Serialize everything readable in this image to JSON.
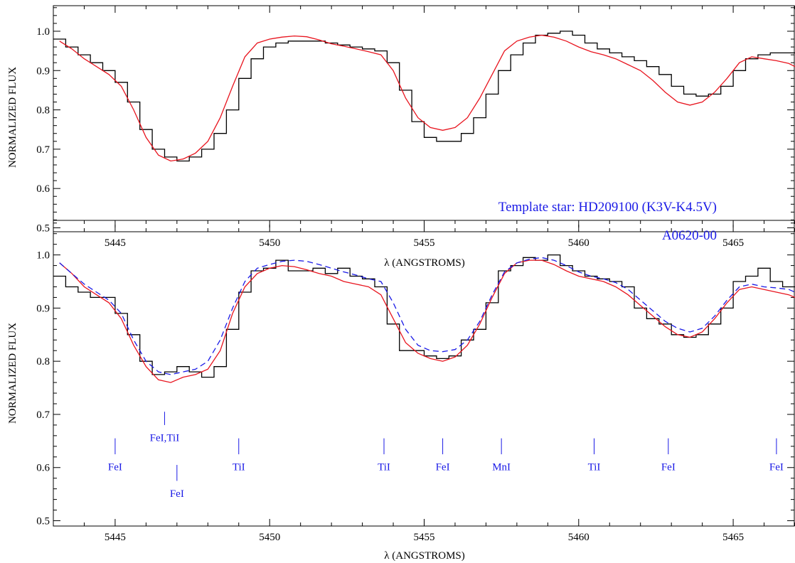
{
  "chart_data": [
    {
      "type": "line",
      "xlabel": "λ (ANGSTROMS)",
      "ylabel": "NORMALIZED FLUX",
      "xlim": [
        5443.0,
        5467.0
      ],
      "ylim": [
        0.49,
        1.065
      ],
      "x_ticks": [
        5445,
        5450,
        5455,
        5460,
        5465
      ],
      "y_ticks": [
        0.5,
        0.6,
        0.7,
        0.8,
        0.9,
        1.0
      ],
      "annotation": "Template star: HD209100 (K3V-K4.5V)",
      "colors": {
        "observed": "#000000",
        "model": "#e8141e"
      },
      "series": [
        {
          "style": "steps",
          "x": [
            5443.2,
            5443.6,
            5444.0,
            5444.4,
            5444.8,
            5445.2,
            5445.6,
            5446.0,
            5446.4,
            5446.8,
            5447.2,
            5447.6,
            5448.0,
            5448.4,
            5448.8,
            5449.2,
            5449.6,
            5450.0,
            5450.4,
            5450.8,
            5451.2,
            5451.6,
            5452.0,
            5452.4,
            5452.8,
            5453.2,
            5453.6,
            5454.0,
            5454.4,
            5454.8,
            5455.2,
            5455.6,
            5456.0,
            5456.4,
            5456.8,
            5457.2,
            5457.6,
            5458.0,
            5458.4,
            5458.8,
            5459.2,
            5459.6,
            5460.0,
            5460.4,
            5460.8,
            5461.2,
            5461.6,
            5462.0,
            5462.4,
            5462.8,
            5463.2,
            5463.6,
            5464.0,
            5464.4,
            5464.8,
            5465.2,
            5465.6,
            5466.0,
            5466.4,
            5466.8
          ],
          "y": [
            0.98,
            0.96,
            0.94,
            0.92,
            0.9,
            0.87,
            0.82,
            0.75,
            0.7,
            0.68,
            0.67,
            0.68,
            0.7,
            0.74,
            0.8,
            0.88,
            0.93,
            0.96,
            0.97,
            0.975,
            0.975,
            0.975,
            0.97,
            0.965,
            0.96,
            0.955,
            0.95,
            0.92,
            0.85,
            0.77,
            0.73,
            0.72,
            0.72,
            0.74,
            0.78,
            0.84,
            0.9,
            0.94,
            0.97,
            0.99,
            0.995,
            1.0,
            0.99,
            0.97,
            0.955,
            0.945,
            0.935,
            0.925,
            0.91,
            0.89,
            0.86,
            0.84,
            0.835,
            0.84,
            0.86,
            0.9,
            0.93,
            0.94,
            0.945,
            0.945
          ]
        },
        {
          "style": "line",
          "x": [
            5443.2,
            5443.6,
            5444.0,
            5444.4,
            5444.8,
            5445.2,
            5445.6,
            5446.0,
            5446.4,
            5446.8,
            5447.2,
            5447.6,
            5448.0,
            5448.4,
            5448.8,
            5449.2,
            5449.6,
            5450.0,
            5450.4,
            5450.8,
            5451.2,
            5451.6,
            5452.0,
            5452.4,
            5452.8,
            5453.2,
            5453.6,
            5454.0,
            5454.4,
            5454.8,
            5455.2,
            5455.6,
            5456.0,
            5456.4,
            5456.8,
            5457.2,
            5457.6,
            5458.0,
            5458.4,
            5458.8,
            5459.2,
            5459.6,
            5460.0,
            5460.4,
            5460.8,
            5461.2,
            5461.6,
            5462.0,
            5462.4,
            5462.8,
            5463.2,
            5463.6,
            5464.0,
            5464.4,
            5464.8,
            5465.2,
            5465.6,
            5466.0,
            5466.4,
            5466.8,
            5467.0
          ],
          "y": [
            0.975,
            0.955,
            0.93,
            0.91,
            0.89,
            0.86,
            0.8,
            0.73,
            0.685,
            0.67,
            0.675,
            0.69,
            0.72,
            0.78,
            0.86,
            0.935,
            0.97,
            0.98,
            0.985,
            0.988,
            0.986,
            0.978,
            0.968,
            0.962,
            0.955,
            0.948,
            0.94,
            0.9,
            0.83,
            0.78,
            0.755,
            0.748,
            0.755,
            0.78,
            0.83,
            0.89,
            0.95,
            0.975,
            0.985,
            0.99,
            0.985,
            0.975,
            0.96,
            0.948,
            0.94,
            0.93,
            0.915,
            0.9,
            0.875,
            0.845,
            0.82,
            0.812,
            0.82,
            0.845,
            0.88,
            0.92,
            0.935,
            0.93,
            0.925,
            0.918,
            0.91
          ]
        }
      ]
    },
    {
      "type": "line",
      "xlabel": "λ (ANGSTROMS)",
      "ylabel": "NORMALIZED FLUX",
      "xlim": [
        5443.0,
        5467.0
      ],
      "ylim": [
        0.49,
        1.065
      ],
      "x_ticks": [
        5445,
        5450,
        5455,
        5460,
        5465
      ],
      "y_ticks": [
        0.5,
        0.6,
        0.7,
        0.8,
        0.9,
        1.0
      ],
      "annotation": "A0620-00",
      "colors": {
        "observed": "#000000",
        "model": "#e8141e",
        "dashed": "#1a1ae6"
      },
      "series": [
        {
          "style": "steps",
          "x": [
            5443.2,
            5443.6,
            5444.0,
            5444.4,
            5444.8,
            5445.2,
            5445.6,
            5446.0,
            5446.4,
            5446.8,
            5447.2,
            5447.6,
            5448.0,
            5448.4,
            5448.8,
            5449.2,
            5449.6,
            5450.0,
            5450.4,
            5450.8,
            5451.2,
            5451.6,
            5452.0,
            5452.4,
            5452.8,
            5453.2,
            5453.6,
            5454.0,
            5454.4,
            5454.8,
            5455.2,
            5455.6,
            5456.0,
            5456.4,
            5456.8,
            5457.2,
            5457.6,
            5458.0,
            5458.4,
            5458.8,
            5459.2,
            5459.6,
            5460.0,
            5460.4,
            5460.8,
            5461.2,
            5461.6,
            5462.0,
            5462.4,
            5462.8,
            5463.2,
            5463.6,
            5464.0,
            5464.4,
            5464.8,
            5465.2,
            5465.6,
            5466.0,
            5466.4,
            5466.8
          ],
          "y": [
            0.96,
            0.94,
            0.93,
            0.92,
            0.92,
            0.89,
            0.85,
            0.8,
            0.775,
            0.78,
            0.79,
            0.78,
            0.77,
            0.79,
            0.86,
            0.93,
            0.97,
            0.975,
            0.99,
            0.97,
            0.97,
            0.975,
            0.965,
            0.975,
            0.96,
            0.955,
            0.94,
            0.87,
            0.82,
            0.82,
            0.81,
            0.805,
            0.81,
            0.84,
            0.86,
            0.91,
            0.97,
            0.98,
            0.995,
            0.99,
            1.0,
            0.98,
            0.97,
            0.96,
            0.955,
            0.95,
            0.94,
            0.9,
            0.88,
            0.87,
            0.85,
            0.845,
            0.85,
            0.87,
            0.9,
            0.95,
            0.96,
            0.975,
            0.95,
            0.94
          ]
        },
        {
          "style": "line",
          "x": [
            5443.2,
            5443.6,
            5444.0,
            5444.4,
            5444.8,
            5445.2,
            5445.6,
            5446.0,
            5446.4,
            5446.8,
            5447.2,
            5447.6,
            5448.0,
            5448.4,
            5448.8,
            5449.2,
            5449.6,
            5450.0,
            5450.4,
            5450.8,
            5451.2,
            5451.6,
            5452.0,
            5452.4,
            5452.8,
            5453.2,
            5453.6,
            5454.0,
            5454.4,
            5454.8,
            5455.2,
            5455.6,
            5456.0,
            5456.4,
            5456.8,
            5457.2,
            5457.6,
            5458.0,
            5458.4,
            5458.8,
            5459.2,
            5459.6,
            5460.0,
            5460.4,
            5460.8,
            5461.2,
            5461.6,
            5462.0,
            5462.4,
            5462.8,
            5463.2,
            5463.6,
            5464.0,
            5464.4,
            5464.8,
            5465.2,
            5465.6,
            5466.0,
            5466.4,
            5466.8,
            5467.0
          ],
          "y": [
            0.985,
            0.965,
            0.94,
            0.925,
            0.91,
            0.88,
            0.83,
            0.79,
            0.765,
            0.76,
            0.77,
            0.775,
            0.785,
            0.82,
            0.89,
            0.94,
            0.965,
            0.975,
            0.98,
            0.978,
            0.972,
            0.965,
            0.96,
            0.95,
            0.945,
            0.94,
            0.925,
            0.88,
            0.835,
            0.815,
            0.805,
            0.8,
            0.808,
            0.83,
            0.87,
            0.92,
            0.965,
            0.985,
            0.99,
            0.99,
            0.982,
            0.97,
            0.96,
            0.955,
            0.95,
            0.94,
            0.925,
            0.905,
            0.885,
            0.865,
            0.85,
            0.845,
            0.855,
            0.88,
            0.91,
            0.935,
            0.94,
            0.935,
            0.93,
            0.925,
            0.92
          ]
        },
        {
          "style": "dashed",
          "x": [
            5443.2,
            5443.6,
            5444.0,
            5444.4,
            5444.8,
            5445.2,
            5445.6,
            5446.0,
            5446.4,
            5446.8,
            5447.2,
            5447.6,
            5448.0,
            5448.4,
            5448.8,
            5449.2,
            5449.6,
            5450.0,
            5450.4,
            5450.8,
            5451.2,
            5451.6,
            5452.0,
            5452.4,
            5452.8,
            5453.2,
            5453.6,
            5454.0,
            5454.4,
            5454.8,
            5455.2,
            5455.6,
            5456.0,
            5456.4,
            5456.8,
            5457.2,
            5457.6,
            5458.0,
            5458.4,
            5458.8,
            5459.2,
            5459.6,
            5460.0,
            5460.4,
            5460.8,
            5461.2,
            5461.6,
            5462.0,
            5462.4,
            5462.8,
            5463.2,
            5463.6,
            5464.0,
            5464.4,
            5464.8,
            5465.2,
            5465.6,
            5466.0,
            5466.4,
            5466.8,
            5467.0
          ],
          "y": [
            0.985,
            0.965,
            0.945,
            0.93,
            0.915,
            0.89,
            0.84,
            0.8,
            0.78,
            0.775,
            0.78,
            0.785,
            0.8,
            0.84,
            0.9,
            0.95,
            0.975,
            0.982,
            0.988,
            0.99,
            0.988,
            0.982,
            0.975,
            0.968,
            0.962,
            0.955,
            0.95,
            0.91,
            0.86,
            0.83,
            0.82,
            0.818,
            0.822,
            0.84,
            0.875,
            0.925,
            0.968,
            0.985,
            0.992,
            0.995,
            0.99,
            0.98,
            0.968,
            0.96,
            0.955,
            0.948,
            0.935,
            0.915,
            0.895,
            0.875,
            0.862,
            0.855,
            0.862,
            0.885,
            0.915,
            0.94,
            0.945,
            0.94,
            0.938,
            0.935,
            0.93
          ]
        }
      ],
      "line_ids": [
        {
          "label": "FeI",
          "x": 5445.0,
          "y_top": 0.655,
          "y_bot": 0.625,
          "label_y": 0.595
        },
        {
          "label": "FeI,TiI",
          "x": 5446.6,
          "y_top": 0.705,
          "y_bot": 0.68,
          "label_y": 0.65
        },
        {
          "label": "FeI",
          "x": 5447.0,
          "y_top": 0.605,
          "y_bot": 0.575,
          "label_y": 0.545
        },
        {
          "label": "TiI",
          "x": 5449.0,
          "y_top": 0.655,
          "y_bot": 0.625,
          "label_y": 0.595
        },
        {
          "label": "TiI",
          "x": 5453.7,
          "y_top": 0.655,
          "y_bot": 0.625,
          "label_y": 0.595
        },
        {
          "label": "FeI",
          "x": 5455.6,
          "y_top": 0.655,
          "y_bot": 0.625,
          "label_y": 0.595
        },
        {
          "label": "MnI",
          "x": 5457.5,
          "y_top": 0.655,
          "y_bot": 0.625,
          "label_y": 0.595
        },
        {
          "label": "TiI",
          "x": 5460.5,
          "y_top": 0.655,
          "y_bot": 0.625,
          "label_y": 0.595
        },
        {
          "label": "FeI",
          "x": 5462.9,
          "y_top": 0.655,
          "y_bot": 0.625,
          "label_y": 0.595
        },
        {
          "label": "FeI",
          "x": 5466.4,
          "y_top": 0.655,
          "y_bot": 0.625,
          "label_y": 0.595
        }
      ]
    }
  ]
}
